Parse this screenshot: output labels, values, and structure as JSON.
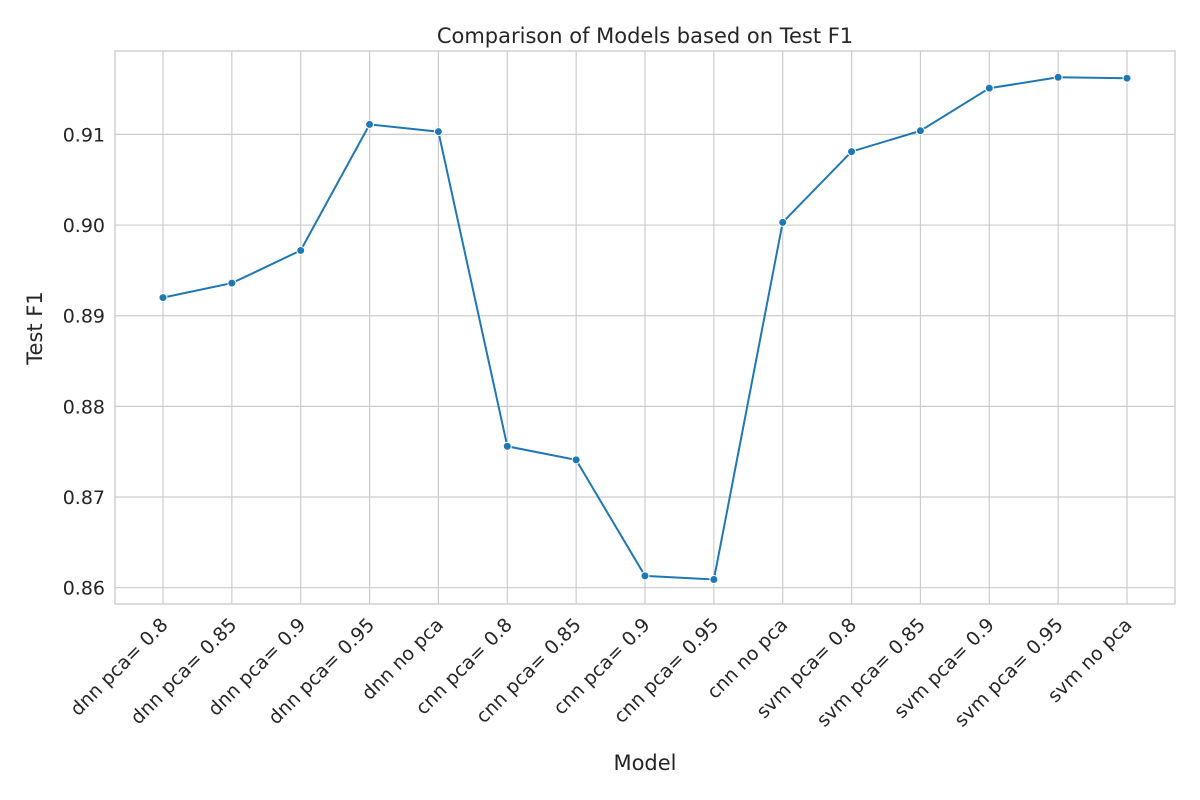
{
  "chart_data": {
    "type": "line",
    "title": "Comparison of Models based on Test F1",
    "xlabel": "Model",
    "ylabel": "Test F1",
    "categories": [
      "dnn pca= 0.8",
      "dnn pca= 0.85",
      "dnn pca= 0.9",
      "dnn pca= 0.95",
      "dnn no pca",
      "cnn pca= 0.8",
      "cnn pca= 0.85",
      "cnn pca= 0.9",
      "cnn pca= 0.95",
      "cnn no pca",
      "svm pca= 0.8",
      "svm pca= 0.85",
      "svm pca= 0.9",
      "svm pca= 0.95",
      "svm no pca"
    ],
    "series": [
      {
        "values": [
          0.892,
          0.8936,
          0.8972,
          0.9111,
          0.9103,
          0.8756,
          0.8741,
          0.8613,
          0.8609,
          0.9003,
          0.9081,
          0.9104,
          0.9151,
          0.9163,
          0.9162
        ],
        "color": "#1f77b4"
      }
    ],
    "yticks": [
      "0.86",
      "0.87",
      "0.88",
      "0.89",
      "0.90",
      "0.91"
    ],
    "ylim": [
      0.8582,
      0.9192
    ],
    "grid": true,
    "legend": "none"
  }
}
